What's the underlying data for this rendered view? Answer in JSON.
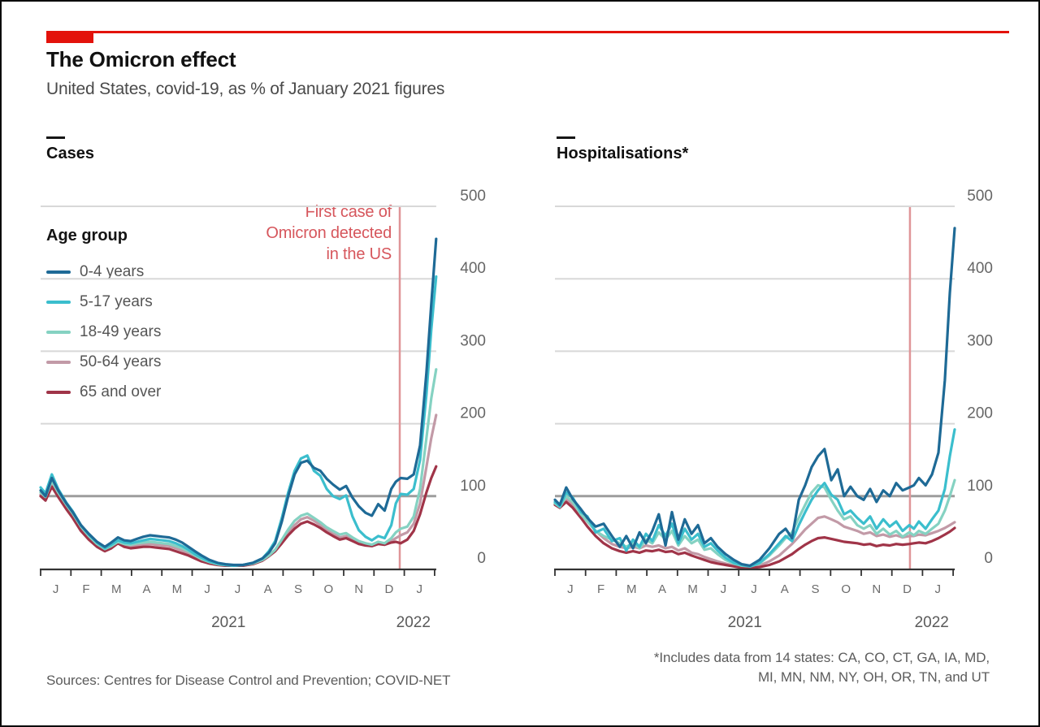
{
  "header": {
    "title": "The Omicron effect",
    "subtitle": "United States, covid-19, as % of January 2021 figures"
  },
  "annotation": {
    "line1": "First case of",
    "line2": "Omicron detected",
    "line3": "in the US"
  },
  "legend": {
    "title": "Age group",
    "items": [
      {
        "label": "0-4 years",
        "color": "#1e6a96"
      },
      {
        "label": "5-17 years",
        "color": "#3bbecd"
      },
      {
        "label": "18-49 years",
        "color": "#85d2c2"
      },
      {
        "label": "50-64 years",
        "color": "#c29aa7"
      },
      {
        "label": "65 and over",
        "color": "#a03448"
      }
    ]
  },
  "footer": {
    "source": "Sources: Centres for Disease Control and Prevention; COVID-NET",
    "footnote_line1": "*Includes data from 14 states: CA, CO, CT, GA, IA, MD,",
    "footnote_line2": "MI, MN, NM, NY, OH, OR, TN, and UT"
  },
  "colors": {
    "brand_red": "#e3120b",
    "annotation_text": "#d6565c",
    "event_line": "#df9598",
    "grid": "#d8d8d8",
    "grid_strong": "#9d9d9d",
    "axis": "#333333",
    "series": [
      "#1e6a96",
      "#3bbecd",
      "#85d2c2",
      "#c29aa7",
      "#a03448"
    ]
  },
  "chart_data": [
    {
      "type": "line",
      "title": "Cases",
      "x_unit": "months since Jan 1st 2021",
      "ylim": [
        0,
        500
      ],
      "y_ticks": [
        0,
        100,
        200,
        300,
        400,
        500
      ],
      "baseline_value": 100,
      "event_line_x": 11.85,
      "x_axis_labels": [
        "J",
        "F",
        "M",
        "A",
        "M",
        "J",
        "J",
        "A",
        "S",
        "O",
        "N",
        "D",
        "J"
      ],
      "year_labels": [
        {
          "text": "2021",
          "m": 6.2
        },
        {
          "text": "2022",
          "m": 12.3
        }
      ],
      "x": [
        0,
        0.16,
        0.37,
        0.58,
        0.85,
        1.06,
        1.33,
        1.59,
        1.86,
        2.12,
        2.33,
        2.55,
        2.76,
        2.97,
        3.18,
        3.39,
        3.61,
        3.82,
        4.03,
        4.24,
        4.46,
        4.67,
        4.88,
        5.09,
        5.31,
        5.57,
        5.84,
        6.1,
        6.37,
        6.68,
        7.0,
        7.32,
        7.53,
        7.74,
        7.96,
        8.17,
        8.38,
        8.59,
        8.8,
        9.02,
        9.23,
        9.44,
        9.65,
        9.87,
        10.08,
        10.29,
        10.5,
        10.72,
        10.93,
        11.14,
        11.35,
        11.57,
        11.72,
        11.88,
        12.1,
        12.31,
        12.52,
        12.73,
        12.89,
        13.05
      ],
      "series": [
        {
          "name": "0-4 years",
          "values": [
            108,
            100,
            125,
            108,
            90,
            78,
            60,
            48,
            37,
            30,
            36,
            43,
            39,
            38,
            41,
            44,
            46,
            45,
            44,
            43,
            40,
            36,
            30,
            24,
            18,
            12,
            8,
            6,
            5,
            5,
            8,
            14,
            22,
            35,
            65,
            100,
            130,
            146,
            149,
            139,
            135,
            124,
            116,
            109,
            114,
            98,
            86,
            77,
            73,
            89,
            80,
            110,
            120,
            125,
            124,
            130,
            170,
            270,
            365,
            455
          ]
        },
        {
          "name": "5-17 years",
          "values": [
            112,
            104,
            130,
            110,
            91,
            79,
            60,
            47,
            36,
            28,
            33,
            39,
            36,
            35,
            37,
            39,
            41,
            40,
            39,
            38,
            35,
            31,
            26,
            20,
            15,
            10,
            7,
            5,
            4,
            5,
            8,
            14,
            24,
            38,
            70,
            105,
            135,
            152,
            156,
            135,
            128,
            110,
            100,
            96,
            101,
            72,
            53,
            44,
            39,
            45,
            42,
            60,
            90,
            103,
            102,
            110,
            150,
            240,
            330,
            403
          ]
        },
        {
          "name": "18-49 years",
          "values": [
            105,
            99,
            121,
            105,
            88,
            76,
            58,
            45,
            34,
            27,
            31,
            37,
            34,
            33,
            35,
            36,
            37,
            36,
            35,
            34,
            31,
            28,
            24,
            18,
            13,
            9,
            6,
            5,
            4,
            5,
            7,
            12,
            18,
            26,
            40,
            54,
            66,
            73,
            76,
            70,
            64,
            57,
            52,
            47,
            49,
            43,
            38,
            35,
            33,
            37,
            35,
            42,
            50,
            55,
            58,
            72,
            110,
            180,
            235,
            275
          ]
        },
        {
          "name": "50-64 years",
          "values": [
            102,
            96,
            117,
            102,
            85,
            73,
            55,
            43,
            32,
            25,
            29,
            36,
            32,
            30,
            32,
            33,
            34,
            33,
            32,
            31,
            28,
            25,
            21,
            16,
            12,
            8,
            6,
            5,
            4,
            5,
            7,
            12,
            18,
            26,
            38,
            50,
            60,
            68,
            71,
            66,
            60,
            53,
            48,
            43,
            45,
            40,
            36,
            34,
            33,
            36,
            34,
            38,
            42,
            46,
            50,
            62,
            90,
            140,
            180,
            212
          ]
        },
        {
          "name": "65 and over",
          "values": [
            100,
            94,
            113,
            99,
            82,
            70,
            52,
            40,
            30,
            24,
            28,
            35,
            30,
            28,
            29,
            30,
            30,
            29,
            28,
            27,
            24,
            21,
            18,
            14,
            10,
            7,
            5,
            4,
            4,
            4,
            6,
            11,
            17,
            24,
            35,
            46,
            55,
            62,
            65,
            61,
            56,
            50,
            45,
            40,
            42,
            38,
            34,
            32,
            31,
            34,
            33,
            36,
            37,
            35,
            40,
            52,
            75,
            105,
            125,
            141
          ]
        }
      ]
    },
    {
      "type": "line",
      "title": "Hospitalisations*",
      "x_unit": "months since Jan 1st 2021",
      "ylim": [
        0,
        500
      ],
      "y_ticks": [
        0,
        100,
        200,
        300,
        400,
        500
      ],
      "baseline_value": 100,
      "event_line_x": 11.59,
      "x_axis_labels": [
        "J",
        "F",
        "M",
        "A",
        "M",
        "J",
        "J",
        "A",
        "S",
        "O",
        "N",
        "D",
        "J"
      ],
      "year_labels": [
        {
          "text": "2021",
          "m": 6.2
        },
        {
          "text": "2022",
          "m": 12.3
        }
      ],
      "x": [
        0,
        0.16,
        0.37,
        0.58,
        0.85,
        1.06,
        1.33,
        1.59,
        1.86,
        2.12,
        2.33,
        2.55,
        2.76,
        2.97,
        3.18,
        3.39,
        3.61,
        3.82,
        4.03,
        4.24,
        4.46,
        4.67,
        4.88,
        5.09,
        5.31,
        5.57,
        5.84,
        6.1,
        6.37,
        6.68,
        7.0,
        7.32,
        7.53,
        7.74,
        7.96,
        8.17,
        8.38,
        8.59,
        8.8,
        9.02,
        9.23,
        9.44,
        9.65,
        9.87,
        10.08,
        10.29,
        10.5,
        10.72,
        10.93,
        11.14,
        11.35,
        11.57,
        11.72,
        11.88,
        12.1,
        12.31,
        12.52,
        12.73,
        12.89,
        13.05
      ],
      "series": [
        {
          "name": "0-4 years",
          "values": [
            95,
            88,
            112,
            96,
            82,
            70,
            58,
            62,
            45,
            30,
            45,
            28,
            50,
            35,
            52,
            75,
            32,
            78,
            40,
            68,
            48,
            60,
            35,
            42,
            30,
            20,
            12,
            6,
            4,
            12,
            28,
            48,
            55,
            42,
            95,
            115,
            140,
            155,
            165,
            122,
            137,
            100,
            113,
            100,
            95,
            110,
            92,
            108,
            100,
            118,
            108,
            112,
            115,
            125,
            115,
            130,
            160,
            260,
            380,
            470
          ]
        },
        {
          "name": "5-17 years",
          "values": [
            92,
            86,
            105,
            98,
            78,
            72,
            50,
            55,
            38,
            42,
            25,
            40,
            30,
            48,
            38,
            60,
            45,
            62,
            35,
            55,
            40,
            48,
            30,
            35,
            25,
            15,
            8,
            5,
            3,
            8,
            20,
            35,
            45,
            38,
            60,
            78,
            95,
            108,
            118,
            102,
            95,
            75,
            80,
            70,
            62,
            72,
            55,
            68,
            58,
            65,
            52,
            60,
            55,
            65,
            55,
            68,
            80,
            110,
            155,
            192
          ]
        },
        {
          "name": "18-49 years",
          "values": [
            90,
            85,
            100,
            92,
            75,
            65,
            52,
            45,
            40,
            35,
            30,
            35,
            28,
            40,
            35,
            50,
            40,
            52,
            32,
            45,
            35,
            40,
            26,
            28,
            20,
            12,
            7,
            4,
            3,
            7,
            18,
            32,
            42,
            50,
            70,
            88,
            105,
            115,
            112,
            95,
            80,
            68,
            72,
            60,
            55,
            60,
            48,
            55,
            47,
            52,
            44,
            50,
            46,
            52,
            48,
            55,
            62,
            80,
            100,
            122
          ]
        },
        {
          "name": "50-64 years",
          "values": [
            90,
            86,
            96,
            88,
            75,
            65,
            52,
            42,
            34,
            30,
            28,
            30,
            28,
            32,
            30,
            32,
            28,
            30,
            25,
            28,
            22,
            20,
            16,
            13,
            10,
            7,
            4,
            2,
            2,
            4,
            10,
            18,
            26,
            34,
            44,
            54,
            62,
            70,
            72,
            68,
            64,
            58,
            55,
            52,
            48,
            50,
            45,
            47,
            44,
            46,
            43,
            45,
            45,
            47,
            46,
            49,
            52,
            56,
            60,
            64
          ]
        },
        {
          "name": "65 and over",
          "values": [
            88,
            84,
            92,
            84,
            70,
            58,
            45,
            35,
            28,
            24,
            22,
            24,
            22,
            25,
            24,
            26,
            23,
            24,
            20,
            22,
            18,
            15,
            12,
            9,
            7,
            5,
            3,
            1,
            1,
            2,
            5,
            10,
            15,
            20,
            27,
            33,
            38,
            42,
            43,
            41,
            39,
            37,
            36,
            35,
            33,
            34,
            31,
            33,
            32,
            34,
            33,
            34,
            35,
            36,
            35,
            38,
            42,
            47,
            51,
            56
          ]
        }
      ]
    }
  ]
}
